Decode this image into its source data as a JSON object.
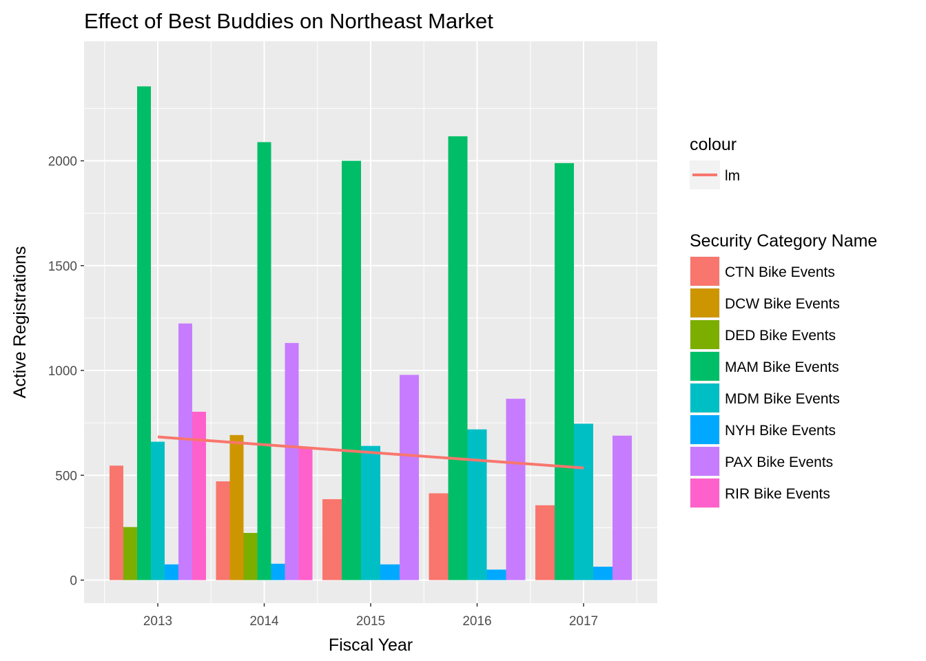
{
  "chart_data": {
    "type": "bar",
    "title": "Effect of Best Buddies on Northeast Market",
    "xlabel": "Fiscal Year",
    "ylabel": "Active Registrations",
    "categories": [
      "2013",
      "2014",
      "2015",
      "2016",
      "2017"
    ],
    "ylim": [
      -110,
      2570
    ],
    "yticks": [
      0,
      500,
      1000,
      1500,
      2000
    ],
    "grid": true,
    "series": [
      {
        "name": "CTN Bike Events",
        "color": "#F8766D",
        "values": [
          546,
          471,
          386,
          414,
          357
        ]
      },
      {
        "name": "DCW Bike Events",
        "color": "#CD9600",
        "values": [
          null,
          692,
          null,
          null,
          null
        ]
      },
      {
        "name": "DED Bike Events",
        "color": "#7CAE00",
        "values": [
          253,
          225,
          null,
          null,
          null
        ]
      },
      {
        "name": "MAM Bike Events",
        "color": "#00BE67",
        "values": [
          2355,
          2089,
          2000,
          2117,
          1989
        ]
      },
      {
        "name": "MDM Bike Events",
        "color": "#00BFC4",
        "values": [
          660,
          null,
          640,
          719,
          746
        ]
      },
      {
        "name": "NYH Bike Events",
        "color": "#00A9FF",
        "values": [
          75,
          78,
          75,
          50,
          64
        ]
      },
      {
        "name": "PAX Bike Events",
        "color": "#C77CFF",
        "values": [
          1224,
          1131,
          979,
          865,
          689
        ]
      },
      {
        "name": "RIR Bike Events",
        "color": "#FF61CC",
        "values": [
          803,
          635,
          null,
          null,
          null
        ]
      }
    ],
    "trend": {
      "label": "lm",
      "color": "#F8766D",
      "x": [
        "2013",
        "2017"
      ],
      "y": [
        683,
        535
      ]
    },
    "legend": {
      "position": "right",
      "colour_title": "colour",
      "fill_title": "Security Category Name"
    }
  }
}
